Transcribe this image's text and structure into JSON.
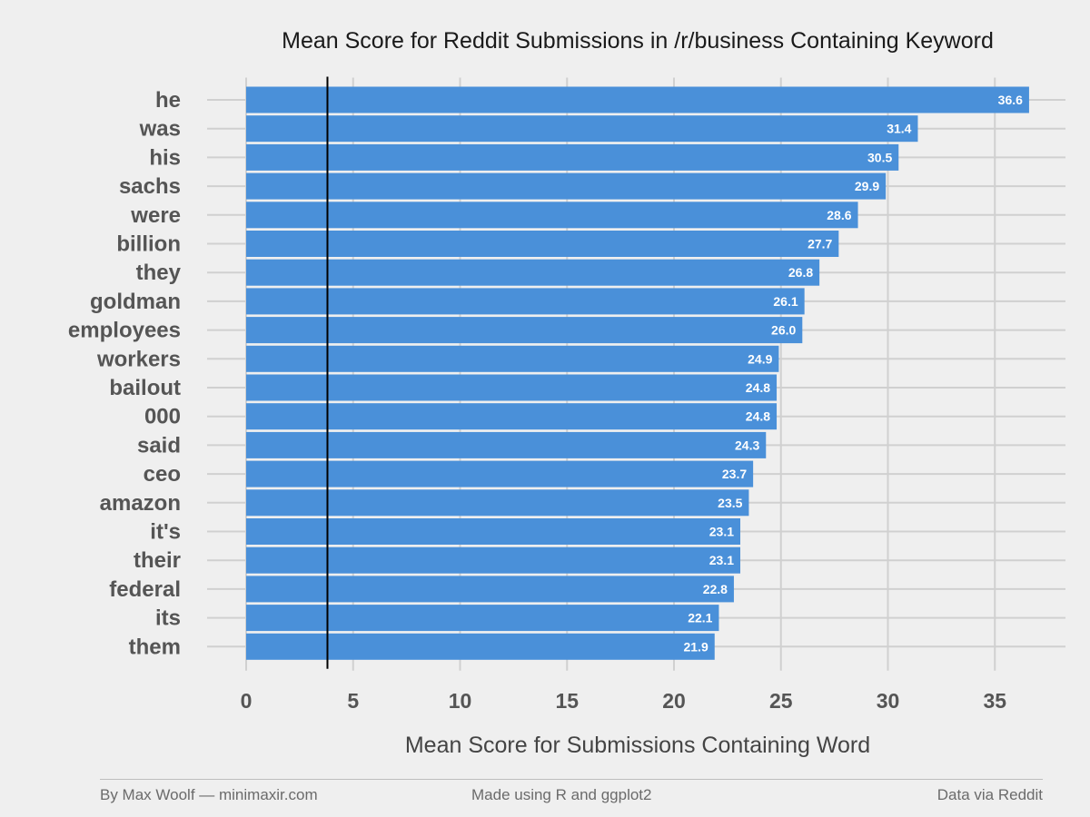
{
  "chart_data": {
    "type": "bar",
    "orientation": "horizontal",
    "title": "Mean Score for Reddit Submissions in /r/business Containing Keyword",
    "xlabel": "Mean Score for Submissions Containing Word",
    "ylabel": "",
    "categories": [
      "he",
      "was",
      "his",
      "sachs",
      "were",
      "billion",
      "they",
      "goldman",
      "employees",
      "workers",
      "bailout",
      "000",
      "said",
      "ceo",
      "amazon",
      "it's",
      "their",
      "federal",
      "its",
      "them"
    ],
    "values": [
      36.6,
      31.4,
      30.5,
      29.9,
      28.6,
      27.7,
      26.8,
      26.1,
      26.0,
      24.9,
      24.8,
      24.8,
      24.3,
      23.7,
      23.5,
      23.1,
      23.1,
      22.8,
      22.1,
      21.9
    ],
    "value_labels": [
      "36.6",
      "31.4",
      "30.5",
      "29.9",
      "28.6",
      "27.7",
      "26.8",
      "26.1",
      "26.0",
      "24.9",
      "24.8",
      "24.8",
      "24.3",
      "23.7",
      "23.5",
      "23.1",
      "23.1",
      "22.8",
      "22.1",
      "21.9"
    ],
    "xticks": [
      0,
      5,
      10,
      15,
      20,
      25,
      30,
      35
    ],
    "xlim": [
      0,
      38
    ],
    "reference_line": 3.8,
    "grid": true,
    "bar_color": "#4a90d9",
    "reference_line_color": "#000000"
  },
  "footer": {
    "left": "By Max Woolf — minimaxir.com",
    "center": "Made using R and ggplot2",
    "right": "Data via Reddit"
  }
}
